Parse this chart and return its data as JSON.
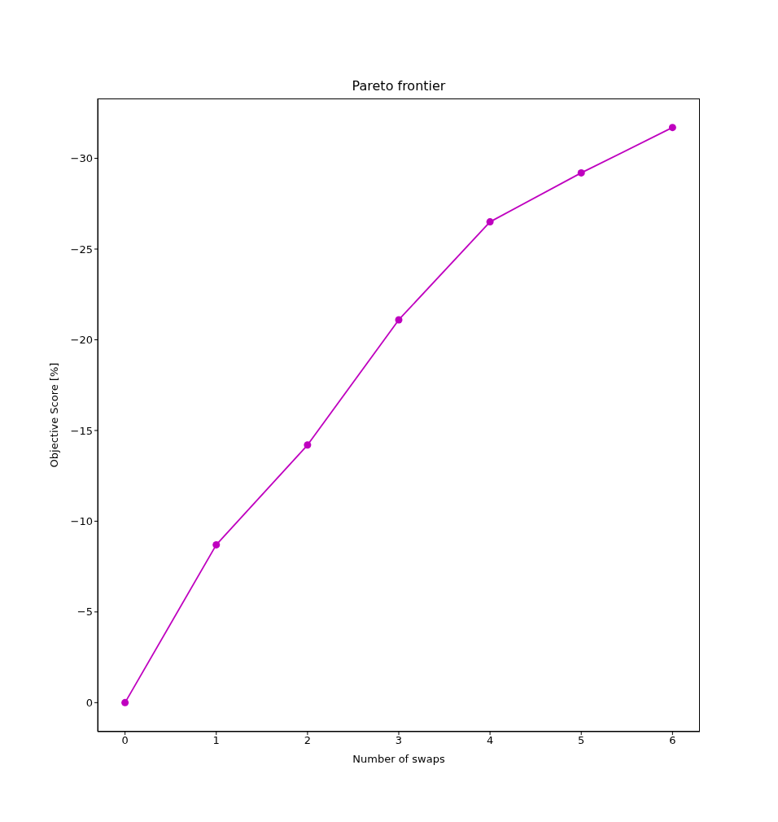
{
  "chart_data": {
    "type": "line",
    "title": "Pareto frontier",
    "xlabel": "Number of swaps",
    "ylabel": "Objective Score [%]",
    "x": [
      0,
      1,
      2,
      3,
      4,
      5,
      6
    ],
    "series": [
      {
        "color": "#bf00bf",
        "values": [
          0,
          -8.7,
          -14.2,
          -21.1,
          -26.5,
          -29.2,
          -31.7
        ]
      }
    ],
    "xlim": [
      -0.3,
      6.3
    ],
    "xticks": [
      0,
      1,
      2,
      3,
      4,
      5,
      6
    ],
    "ylim": [
      1.6,
      -33.3
    ],
    "yticks": [
      0,
      {
        "value": -5,
        "label": "−5"
      },
      {
        "value": -10,
        "label": "−10"
      },
      {
        "value": -15,
        "label": "−15"
      },
      {
        "value": -20,
        "label": "−20"
      },
      {
        "value": -25,
        "label": "−25"
      },
      {
        "value": -30,
        "label": "−30"
      }
    ],
    "grid": false,
    "legend": false,
    "marker": "circle",
    "line_style": "solid"
  }
}
